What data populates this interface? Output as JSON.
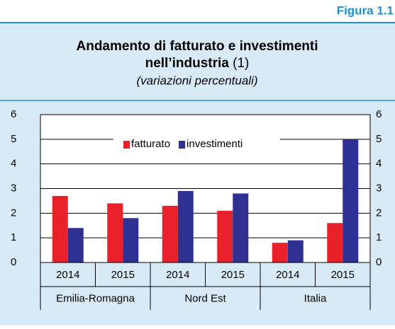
{
  "figure_label": "Figura 1.1",
  "chart_data": {
    "type": "bar",
    "title_lines": [
      "Andamento di fatturato e investimenti",
      "nell’industria"
    ],
    "title_note": "(1)",
    "subtitle": "(variazioni percentuali)",
    "categories": [
      "2014",
      "2015",
      "2014",
      "2015",
      "2014",
      "2015"
    ],
    "groups": [
      "Emilia-Romagna",
      "Nord Est",
      "Italia"
    ],
    "series": [
      {
        "name": "fatturato",
        "color": "#e8212b",
        "values": [
          2.7,
          2.4,
          2.3,
          2.1,
          0.8,
          1.6
        ]
      },
      {
        "name": "investimenti",
        "color": "#2e3192",
        "values": [
          1.4,
          1.8,
          2.9,
          2.8,
          0.9,
          5.0
        ]
      }
    ],
    "ylim": [
      0,
      6
    ],
    "yticks": [
      0,
      1,
      2,
      3,
      4,
      5,
      6
    ],
    "y2lim": [
      0,
      6
    ],
    "y2ticks": [
      0,
      1,
      2,
      3,
      4,
      5,
      6
    ],
    "grid": true,
    "legend": "top"
  }
}
